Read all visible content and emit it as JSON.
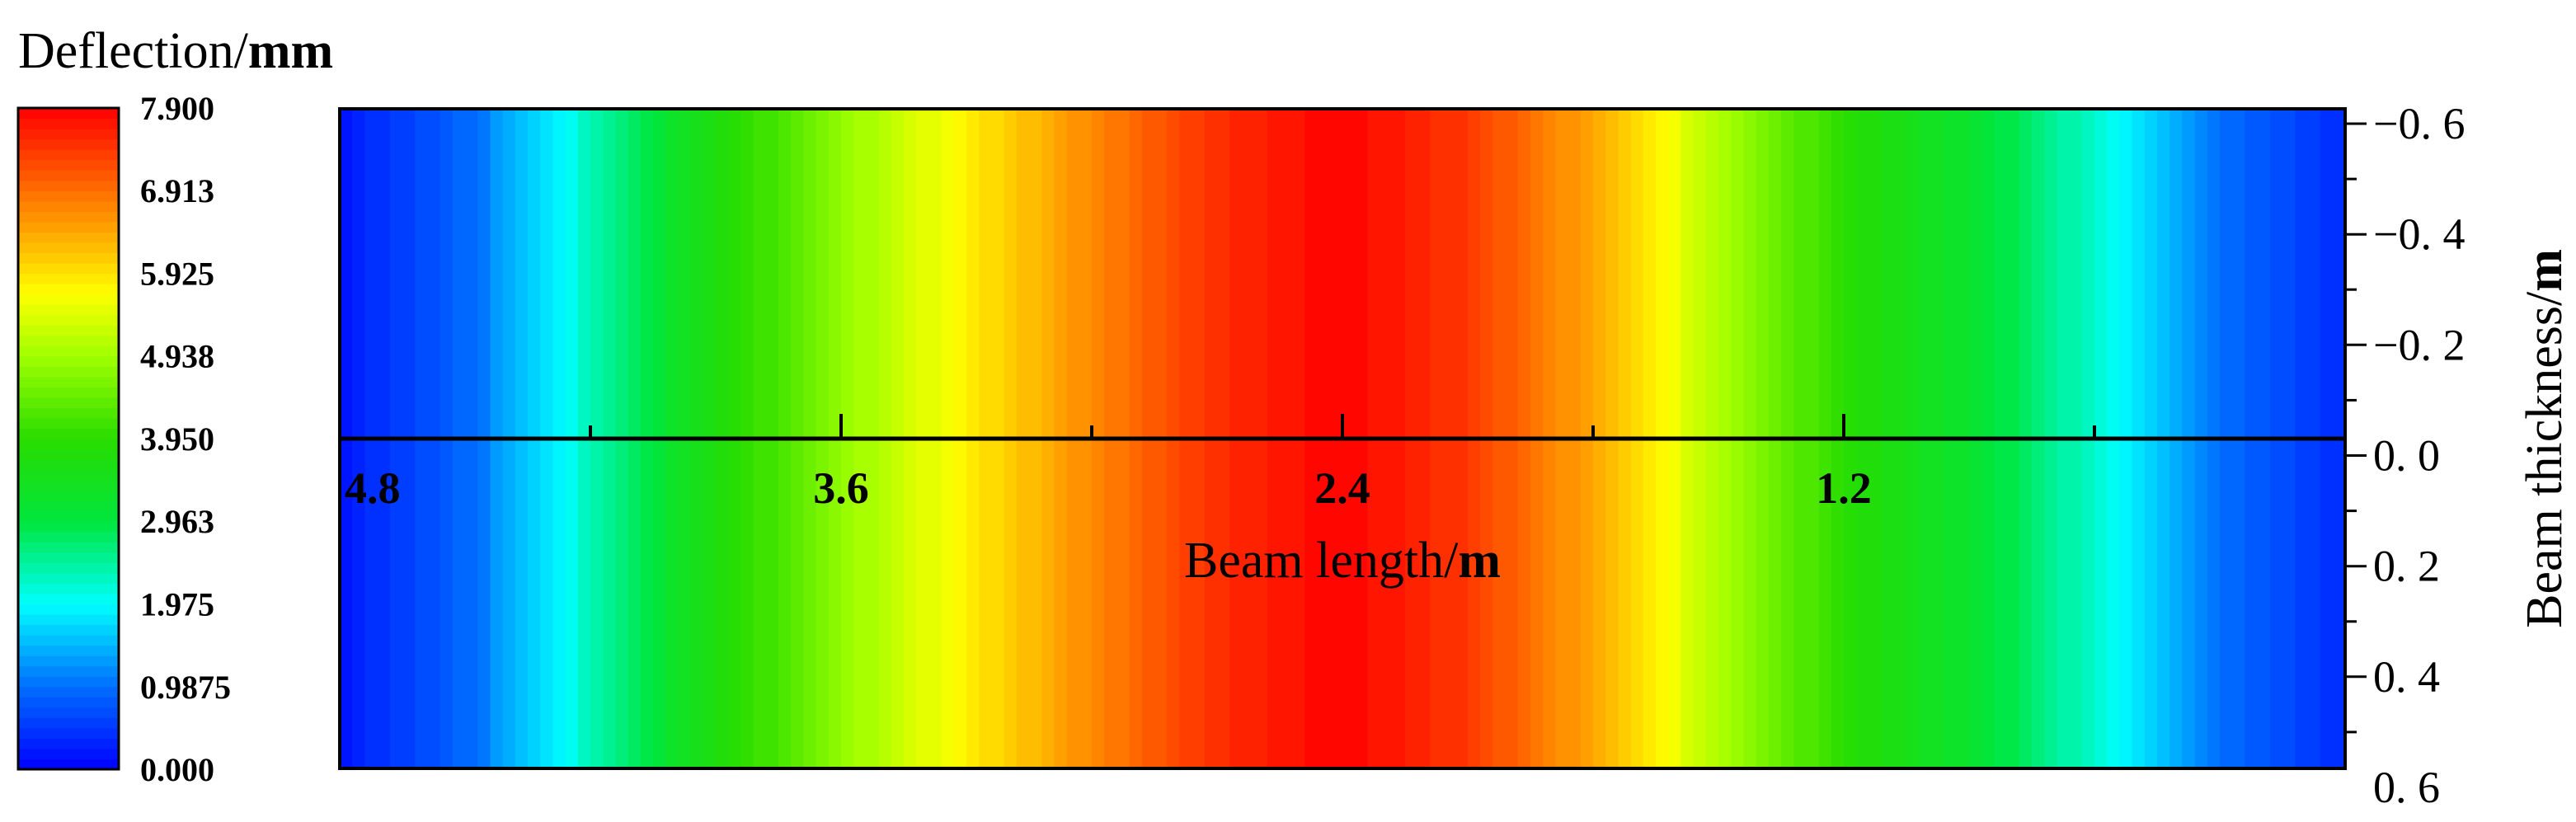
{
  "chart_data": {
    "type": "heatmap",
    "colorbar": {
      "title_plain": "Deflection/",
      "title_unit": "mm",
      "min": 0.0,
      "max": 7.9,
      "tick_labels": [
        "7.900",
        "6.913",
        "5.925",
        "4.938",
        "3.950",
        "2.963",
        "1.975",
        "0.9875",
        "0.000"
      ],
      "tick_values": [
        7.9,
        6.913,
        5.925,
        4.938,
        3.95,
        2.963,
        1.975,
        0.9875,
        0.0
      ],
      "levels": 64
    },
    "x_axis": {
      "title_plain": "Beam length/",
      "title_unit": "m",
      "range": [
        4.8,
        0.0
      ],
      "reversed": true,
      "tick_labels": [
        "4.8",
        "3.6",
        "2.4",
        "1.2"
      ],
      "tick_values": [
        4.8,
        3.6,
        2.4,
        1.2
      ],
      "minor_step": 0.6,
      "position": "middle"
    },
    "y_axis": {
      "title_plain": "Beam thickness/",
      "title_unit": "m",
      "range": [
        -0.6,
        0.6
      ],
      "position": "right",
      "tick_labels": [
        "−0. 6",
        "−0. 4",
        "−0. 2",
        "0. 0",
        "0. 2",
        "0. 4",
        "0. 6"
      ],
      "tick_values": [
        -0.6,
        -0.4,
        -0.2,
        0.0,
        0.2,
        0.4,
        0.6
      ]
    },
    "deflection_profile": {
      "x": [
        0.0,
        0.3,
        0.6,
        0.9,
        1.2,
        1.5,
        1.8,
        2.1,
        2.4,
        2.7,
        3.0,
        3.3,
        3.6,
        3.9,
        4.2,
        4.5,
        4.8
      ],
      "values": [
        0.4,
        1.0,
        2.2,
        3.2,
        3.9,
        5.1,
        6.4,
        7.4,
        7.9,
        7.5,
        6.7,
        5.8,
        4.8,
        3.7,
        2.3,
        0.9,
        0.2
      ]
    }
  }
}
